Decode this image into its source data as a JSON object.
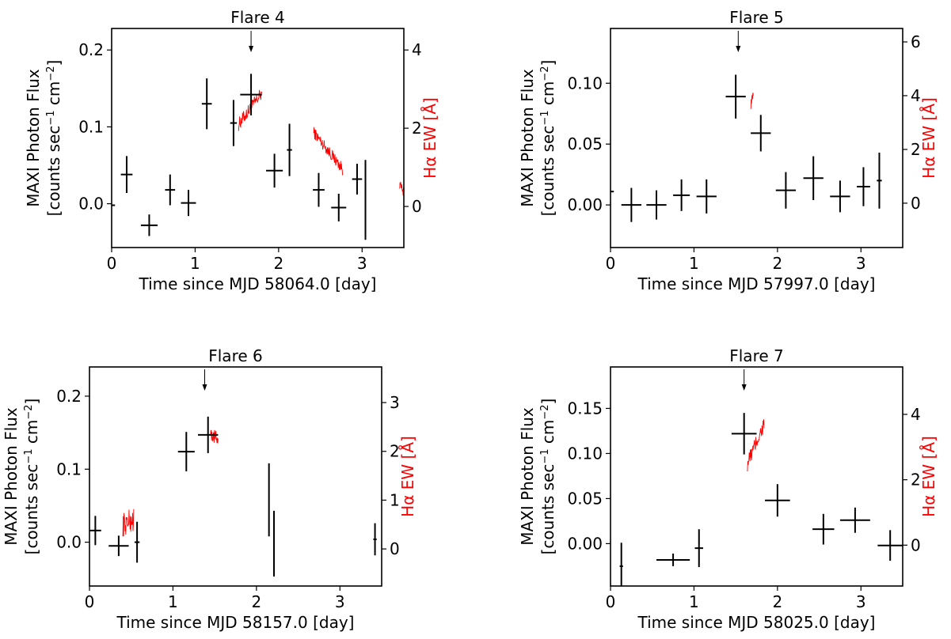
{
  "chart_data": [
    {
      "type": "scatter",
      "title": "Flare 4",
      "xlabel": "Time since MJD 58064.0 [day]",
      "ylabel_left": [
        "MAXI Photon Flux",
        "[counts sec$^{-1}$ cm$^{-2}$]"
      ],
      "ylabel_right": "Hα EW [Å]",
      "xlim": [
        0,
        3.5
      ],
      "ylim_left": [
        -0.057,
        0.228
      ],
      "ylim_right": [
        -1.05,
        4.55
      ],
      "xticks": [
        0,
        1,
        2,
        3
      ],
      "yticks_left": [
        0.0,
        0.1,
        0.2
      ],
      "yticks_right": [
        0,
        2,
        4
      ],
      "grid": false,
      "arrow_x": 1.67,
      "maxi": [
        {
          "x": 0.0,
          "xerr": 0.04,
          "y": -0.002,
          "yerr": 0.0
        },
        {
          "x": 0.18,
          "xerr": 0.07,
          "y": 0.038,
          "yerr": 0.024
        },
        {
          "x": 0.45,
          "xerr": 0.1,
          "y": -0.028,
          "yerr": 0.014
        },
        {
          "x": 0.7,
          "xerr": 0.06,
          "y": 0.018,
          "yerr": 0.02
        },
        {
          "x": 0.92,
          "xerr": 0.09,
          "y": 0.001,
          "yerr": 0.017
        },
        {
          "x": 1.14,
          "xerr": 0.06,
          "y": 0.13,
          "yerr": 0.033
        },
        {
          "x": 1.46,
          "xerr": 0.04,
          "y": 0.105,
          "yerr": 0.03
        },
        {
          "x": 1.67,
          "xerr": 0.13,
          "y": 0.142,
          "yerr": 0.027
        },
        {
          "x": 1.95,
          "xerr": 0.1,
          "y": 0.043,
          "yerr": 0.022
        },
        {
          "x": 2.13,
          "xerr": 0.03,
          "y": 0.07,
          "yerr": 0.034
        },
        {
          "x": 2.48,
          "xerr": 0.07,
          "y": 0.018,
          "yerr": 0.022
        },
        {
          "x": 2.72,
          "xerr": 0.09,
          "y": -0.005,
          "yerr": 0.018
        },
        {
          "x": 2.94,
          "xerr": 0.06,
          "y": 0.032,
          "yerr": 0.02
        },
        {
          "x": 3.04,
          "xerr": 0.0,
          "y": 0.005,
          "yerr": 0.052
        }
      ],
      "halpha": [
        {
          "x0": 1.52,
          "x1": 1.8,
          "y0": 2.1,
          "y1": 2.9,
          "noise": 0.35
        },
        {
          "x0": 2.42,
          "x1": 2.77,
          "y0": 1.9,
          "y1": 0.95,
          "noise": 0.3
        },
        {
          "x0": 3.45,
          "x1": 3.5,
          "y0": 0.55,
          "y1": 0.35,
          "noise": 0.25
        }
      ]
    },
    {
      "type": "scatter",
      "title": "Flare 5",
      "xlabel": "Time since MJD 57997.0 [day]",
      "ylabel_left": [
        "MAXI Photon Flux",
        "[counts sec$^{-1}$ cm$^{-2}$]"
      ],
      "ylabel_right": "Hα EW [Å]",
      "xlim": [
        0,
        3.5
      ],
      "ylim_left": [
        -0.035,
        0.145
      ],
      "ylim_right": [
        -1.65,
        6.5
      ],
      "xticks": [
        0,
        1,
        2,
        3
      ],
      "yticks_left": [
        0.0,
        0.05,
        0.1
      ],
      "yticks_right": [
        0,
        2,
        4,
        6
      ],
      "grid": false,
      "arrow_x": 1.53,
      "maxi": [
        {
          "x": 0.0,
          "xerr": 0.04,
          "y": 0.011,
          "yerr": 0.0
        },
        {
          "x": 0.25,
          "xerr": 0.12,
          "y": 0.0,
          "yerr": 0.014
        },
        {
          "x": 0.55,
          "xerr": 0.12,
          "y": 0.0,
          "yerr": 0.012
        },
        {
          "x": 0.85,
          "xerr": 0.1,
          "y": 0.008,
          "yerr": 0.013
        },
        {
          "x": 1.15,
          "xerr": 0.12,
          "y": 0.007,
          "yerr": 0.014
        },
        {
          "x": 1.5,
          "xerr": 0.12,
          "y": 0.089,
          "yerr": 0.018
        },
        {
          "x": 1.8,
          "xerr": 0.12,
          "y": 0.059,
          "yerr": 0.015
        },
        {
          "x": 2.1,
          "xerr": 0.12,
          "y": 0.012,
          "yerr": 0.015
        },
        {
          "x": 2.43,
          "xerr": 0.12,
          "y": 0.022,
          "yerr": 0.018
        },
        {
          "x": 2.75,
          "xerr": 0.12,
          "y": 0.007,
          "yerr": 0.013
        },
        {
          "x": 3.03,
          "xerr": 0.08,
          "y": 0.015,
          "yerr": 0.016
        },
        {
          "x": 3.22,
          "xerr": 0.03,
          "y": 0.02,
          "yerr": 0.023
        }
      ],
      "halpha": [
        {
          "x0": 1.68,
          "x1": 1.71,
          "y0": 3.7,
          "y1": 4.2,
          "noise": 0.4
        }
      ]
    },
    {
      "type": "scatter",
      "title": "Flare 6",
      "xlabel": "Time since MJD 58157.0 [day]",
      "ylabel_left": [
        "MAXI Photon Flux",
        "[counts sec$^{-1}$ cm$^{-2}$]"
      ],
      "ylabel_right": "Hα EW [Å]",
      "xlim": [
        0,
        3.5
      ],
      "ylim_left": [
        -0.06,
        0.24
      ],
      "ylim_right": [
        -0.76,
        3.73
      ],
      "xticks": [
        0,
        1,
        2,
        3
      ],
      "yticks_left": [
        0.0,
        0.1,
        0.2
      ],
      "yticks_right": [
        0,
        1,
        2,
        3
      ],
      "grid": false,
      "arrow_x": 1.38,
      "maxi": [
        {
          "x": 0.07,
          "xerr": 0.07,
          "y": 0.016,
          "yerr": 0.02
        },
        {
          "x": 0.35,
          "xerr": 0.12,
          "y": -0.005,
          "yerr": 0.014
        },
        {
          "x": 0.57,
          "xerr": 0.03,
          "y": 0.0,
          "yerr": 0.028
        },
        {
          "x": 1.16,
          "xerr": 0.1,
          "y": 0.124,
          "yerr": 0.027
        },
        {
          "x": 1.42,
          "xerr": 0.12,
          "y": 0.147,
          "yerr": 0.025
        },
        {
          "x": 2.15,
          "xerr": 0.0,
          "y": 0.058,
          "yerr": 0.05
        },
        {
          "x": 2.21,
          "xerr": 0.0,
          "y": -0.002,
          "yerr": 0.045
        },
        {
          "x": 3.42,
          "xerr": 0.02,
          "y": 0.004,
          "yerr": 0.022
        }
      ],
      "halpha": [
        {
          "x0": 0.4,
          "x1": 0.53,
          "y0": 0.5,
          "y1": 0.6,
          "noise": 0.5
        },
        {
          "x0": 1.45,
          "x1": 1.54,
          "y0": 2.35,
          "y1": 2.25,
          "noise": 0.3
        }
      ]
    },
    {
      "type": "scatter",
      "title": "Flare 7",
      "xlabel": "Time since MJD 58025.0 [day]",
      "ylabel_left": [
        "MAXI Photon Flux",
        "[counts sec$^{-1}$ cm$^{-2}$]"
      ],
      "ylabel_right": "Hα EW [Å]",
      "xlim": [
        0,
        3.5
      ],
      "ylim_left": [
        -0.047,
        0.196
      ],
      "ylim_right": [
        -1.25,
        5.45
      ],
      "xticks": [
        0,
        1,
        2,
        3
      ],
      "yticks_left": [
        0.0,
        0.05,
        0.1,
        0.15
      ],
      "yticks_right": [
        0,
        2,
        4
      ],
      "grid": false,
      "arrow_x": 1.6,
      "maxi": [
        {
          "x": 0.13,
          "xerr": 0.02,
          "y": -0.025,
          "yerr": 0.026
        },
        {
          "x": 0.75,
          "xerr": 0.2,
          "y": -0.018,
          "yerr": 0.007
        },
        {
          "x": 1.06,
          "xerr": 0.05,
          "y": -0.005,
          "yerr": 0.021
        },
        {
          "x": 1.6,
          "xerr": 0.15,
          "y": 0.122,
          "yerr": 0.023
        },
        {
          "x": 2.0,
          "xerr": 0.15,
          "y": 0.048,
          "yerr": 0.018
        },
        {
          "x": 2.55,
          "xerr": 0.13,
          "y": 0.016,
          "yerr": 0.017
        },
        {
          "x": 2.93,
          "xerr": 0.18,
          "y": 0.026,
          "yerr": 0.014
        },
        {
          "x": 3.35,
          "xerr": 0.15,
          "y": -0.002,
          "yerr": 0.017
        }
      ],
      "halpha": [
        {
          "x0": 1.64,
          "x1": 1.84,
          "y0": 2.5,
          "y1": 3.7,
          "noise": 0.5
        }
      ]
    }
  ]
}
